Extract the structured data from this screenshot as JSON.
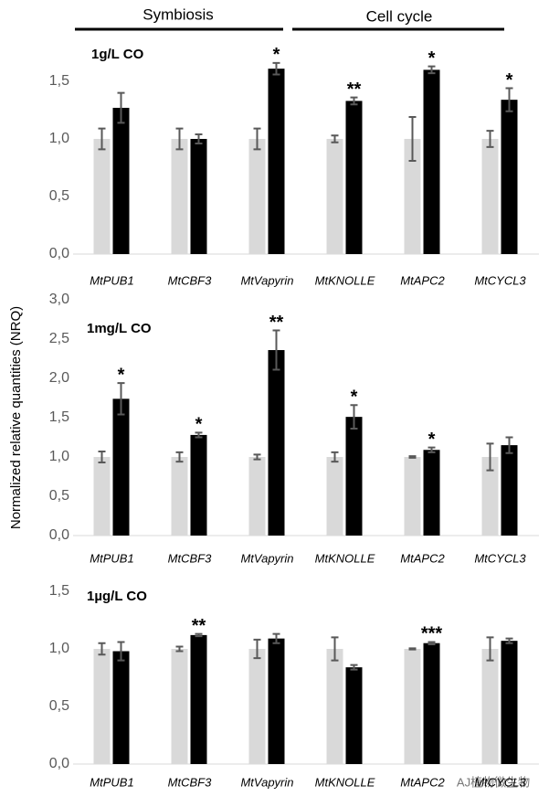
{
  "header": {
    "groups": [
      "Symbiosis",
      "Cell cycle"
    ]
  },
  "watermark": "AJ植物微生物",
  "chart_data": [
    {
      "type": "bar",
      "title": "1g/L CO",
      "categories": [
        "MtPUB1",
        "MtCBF3",
        "MtVapyrin",
        "MtKNOLLE",
        "MtAPC2",
        "MtCYCL3"
      ],
      "series": [
        {
          "color": "#d9d9d9",
          "values": [
            1.0,
            1.0,
            1.0,
            1.0,
            1.0,
            1.0
          ],
          "errors": [
            0.09,
            0.09,
            0.09,
            0.03,
            0.19,
            0.07
          ]
        },
        {
          "color": "#000000",
          "values": [
            1.27,
            1.0,
            1.61,
            1.33,
            1.6,
            1.34
          ],
          "errors": [
            0.13,
            0.04,
            0.05,
            0.03,
            0.03,
            0.1
          ]
        }
      ],
      "annotations": [
        null,
        null,
        "*",
        "**",
        "*",
        "*"
      ],
      "ylim": [
        0,
        1.8
      ],
      "yticks": [
        {
          "value": 0,
          "label": "0,0"
        },
        {
          "value": 0.5,
          "label": "0,5"
        },
        {
          "value": 1.0,
          "label": "1,0"
        },
        {
          "value": 1.5,
          "label": "1,5"
        }
      ]
    },
    {
      "type": "bar",
      "title": "1mg/L CO",
      "ylabel": "Normalized relative quantities (NRQ)",
      "categories": [
        "MtPUB1",
        "MtCBF3",
        "MtVapyrin",
        "MtKNOLLE",
        "MtAPC2",
        "MtCYCL3"
      ],
      "series": [
        {
          "color": "#d9d9d9",
          "values": [
            1.0,
            1.0,
            1.0,
            1.0,
            1.0,
            1.0
          ],
          "errors": [
            0.07,
            0.06,
            0.03,
            0.06,
            0.01,
            0.17
          ]
        },
        {
          "color": "#000000",
          "values": [
            1.74,
            1.28,
            2.36,
            1.51,
            1.09,
            1.15
          ],
          "errors": [
            0.2,
            0.03,
            0.25,
            0.15,
            0.03,
            0.1
          ]
        }
      ],
      "annotations": [
        "*",
        "*",
        "**",
        "*",
        "*",
        null
      ],
      "ylim": [
        0,
        3.0
      ],
      "yticks": [
        {
          "value": 0,
          "label": "0,0"
        },
        {
          "value": 0.5,
          "label": "0,5"
        },
        {
          "value": 1.0,
          "label": "1,0"
        },
        {
          "value": 1.5,
          "label": "1,5"
        },
        {
          "value": 2.0,
          "label": "2,0"
        },
        {
          "value": 2.5,
          "label": "2,5"
        },
        {
          "value": 3.0,
          "label": "3,0"
        }
      ]
    },
    {
      "type": "bar",
      "title": "1µg/L CO",
      "categories": [
        "MtPUB1",
        "MtCBF3",
        "MtVapyrin",
        "MtKNOLLE",
        "MtAPC2",
        "MtCYCL3"
      ],
      "series": [
        {
          "color": "#d9d9d9",
          "values": [
            1.0,
            1.0,
            1.0,
            1.0,
            1.0,
            1.0
          ],
          "errors": [
            0.05,
            0.02,
            0.08,
            0.1,
            0.005,
            0.1
          ]
        },
        {
          "color": "#000000",
          "values": [
            0.98,
            1.12,
            1.09,
            0.84,
            1.05,
            1.07
          ],
          "errors": [
            0.08,
            0.01,
            0.04,
            0.02,
            0.01,
            0.02
          ]
        }
      ],
      "annotations": [
        null,
        "**",
        null,
        null,
        "***",
        null
      ],
      "ylim": [
        0,
        1.5
      ],
      "yticks": [
        {
          "value": 0,
          "label": "0,0"
        },
        {
          "value": 0.5,
          "label": "0,5"
        },
        {
          "value": 1.0,
          "label": "1,0"
        },
        {
          "value": 1.5,
          "label": "1,5"
        }
      ]
    }
  ]
}
